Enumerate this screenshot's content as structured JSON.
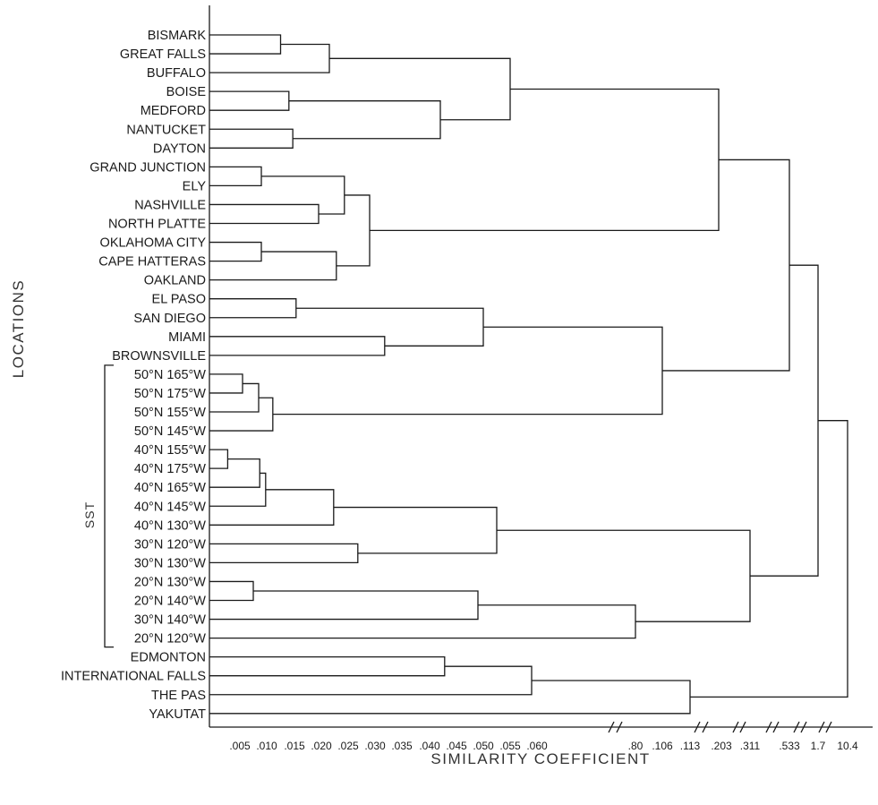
{
  "chart_data": {
    "type": "dendrogram",
    "xlabel": "SIMILARITY COEFFICIENT",
    "ylabel": "LOCATIONS",
    "bracket_label": "SST",
    "ticks": [
      ".005",
      ".010",
      ".015",
      ".020",
      ".025",
      ".030",
      ".035",
      ".040",
      ".045",
      ".050",
      ".055",
      ".060",
      ".80",
      ".106",
      ".113",
      ".203",
      ".311",
      ".533",
      "1.7",
      "10.4"
    ],
    "leaves": [
      "BISMARK",
      "GREAT FALLS",
      "BUFFALO",
      "BOISE",
      "MEDFORD",
      "NANTUCKET",
      "DAYTON",
      "GRAND JUNCTION",
      "ELY",
      "NASHVILLE",
      "NORTH PLATTE",
      "OKLAHOMA CITY",
      "CAPE HATTERAS",
      "OAKLAND",
      "EL PASO",
      "SAN DIEGO",
      "MIAMI",
      "BROWNSVILLE",
      "50°N 165°W",
      "50°N 175°W",
      "50°N 155°W",
      "50°N 145°W",
      "40°N 155°W",
      "40°N 175°W",
      "40°N 165°W",
      "40°N 145°W",
      "40°N 130°W",
      "30°N 120°W",
      "30°N 130°W",
      "20°N 130°W",
      "20°N 140°W",
      "30°N 140°W",
      "20°N 120°W",
      "EDMONTON",
      "INTERNATIONAL FALLS",
      "THE PAS",
      "YAKUTAT"
    ],
    "merges": [
      {
        "a": "BISMARK",
        "b": "GREAT FALLS",
        "height": 0.0125
      },
      {
        "a": "m0",
        "b": "BUFFALO",
        "height": 0.0215
      },
      {
        "a": "BOISE",
        "b": "MEDFORD",
        "height": 0.014
      },
      {
        "a": "NANTUCKET",
        "b": "DAYTON",
        "height": 0.0147
      },
      {
        "a": "m2",
        "b": "m3",
        "height": 0.042
      },
      {
        "a": "m1",
        "b": "m4",
        "height": 0.055
      },
      {
        "a": "GRAND JUNCTION",
        "b": "ELY",
        "height": 0.009
      },
      {
        "a": "NASHVILLE",
        "b": "NORTH PLATTE",
        "height": 0.0195
      },
      {
        "a": "m6",
        "b": "m7",
        "height": 0.0243
      },
      {
        "a": "OKLAHOMA CITY",
        "b": "CAPE HATTERAS",
        "height": 0.009
      },
      {
        "a": "m9",
        "b": "OAKLAND",
        "height": 0.0228
      },
      {
        "a": "m8",
        "b": "m10",
        "height": 0.029
      },
      {
        "a": "m5",
        "b": "m11",
        "height": 0.2
      },
      {
        "a": "EL PASO",
        "b": "SAN DIEGO",
        "height": 0.0153
      },
      {
        "a": "MIAMI",
        "b": "BROWNSVILLE",
        "height": 0.0318
      },
      {
        "a": "m13",
        "b": "m14",
        "height": 0.05
      },
      {
        "a": "50°N 165°W",
        "b": "50°N 175°W",
        "height": 0.0055
      },
      {
        "a": "m16",
        "b": "50°N 155°W",
        "height": 0.0085
      },
      {
        "a": "m17",
        "b": "50°N 145°W",
        "height": 0.0111
      },
      {
        "a": "m15",
        "b": "m18",
        "height": 0.106
      },
      {
        "a": "40°N 155°W",
        "b": "40°N 175°W",
        "height": 0.003
      },
      {
        "a": "m20",
        "b": "40°N 165°W",
        "height": 0.0087
      },
      {
        "a": "m21",
        "b": "40°N 145°W",
        "height": 0.0098
      },
      {
        "a": "m22",
        "b": "40°N 130°W",
        "height": 0.0223
      },
      {
        "a": "30°N 120°W",
        "b": "30°N 130°W",
        "height": 0.0268
      },
      {
        "a": "m23",
        "b": "m24",
        "height": 0.0525
      },
      {
        "a": "20°N 130°W",
        "b": "20°N 140°W",
        "height": 0.0075
      },
      {
        "a": "m26",
        "b": "30°N 140°W",
        "height": 0.049
      },
      {
        "a": "m27",
        "b": "20°N 120°W",
        "height": 0.8
      },
      {
        "a": "m25",
        "b": "m28",
        "height": 0.311
      },
      {
        "a": "m12",
        "b": "m19",
        "height": 0.533
      },
      {
        "a": "m30",
        "b": "m29",
        "height": 1.7
      },
      {
        "a": "EDMONTON",
        "b": "INTERNATIONAL FALLS",
        "height": 0.0428
      },
      {
        "a": "m32",
        "b": "THE PAS",
        "height": 0.059
      },
      {
        "a": "m33",
        "b": "YAKUTAT",
        "height": 0.113
      },
      {
        "a": "m31",
        "b": "m34",
        "height": 10.4
      }
    ]
  }
}
